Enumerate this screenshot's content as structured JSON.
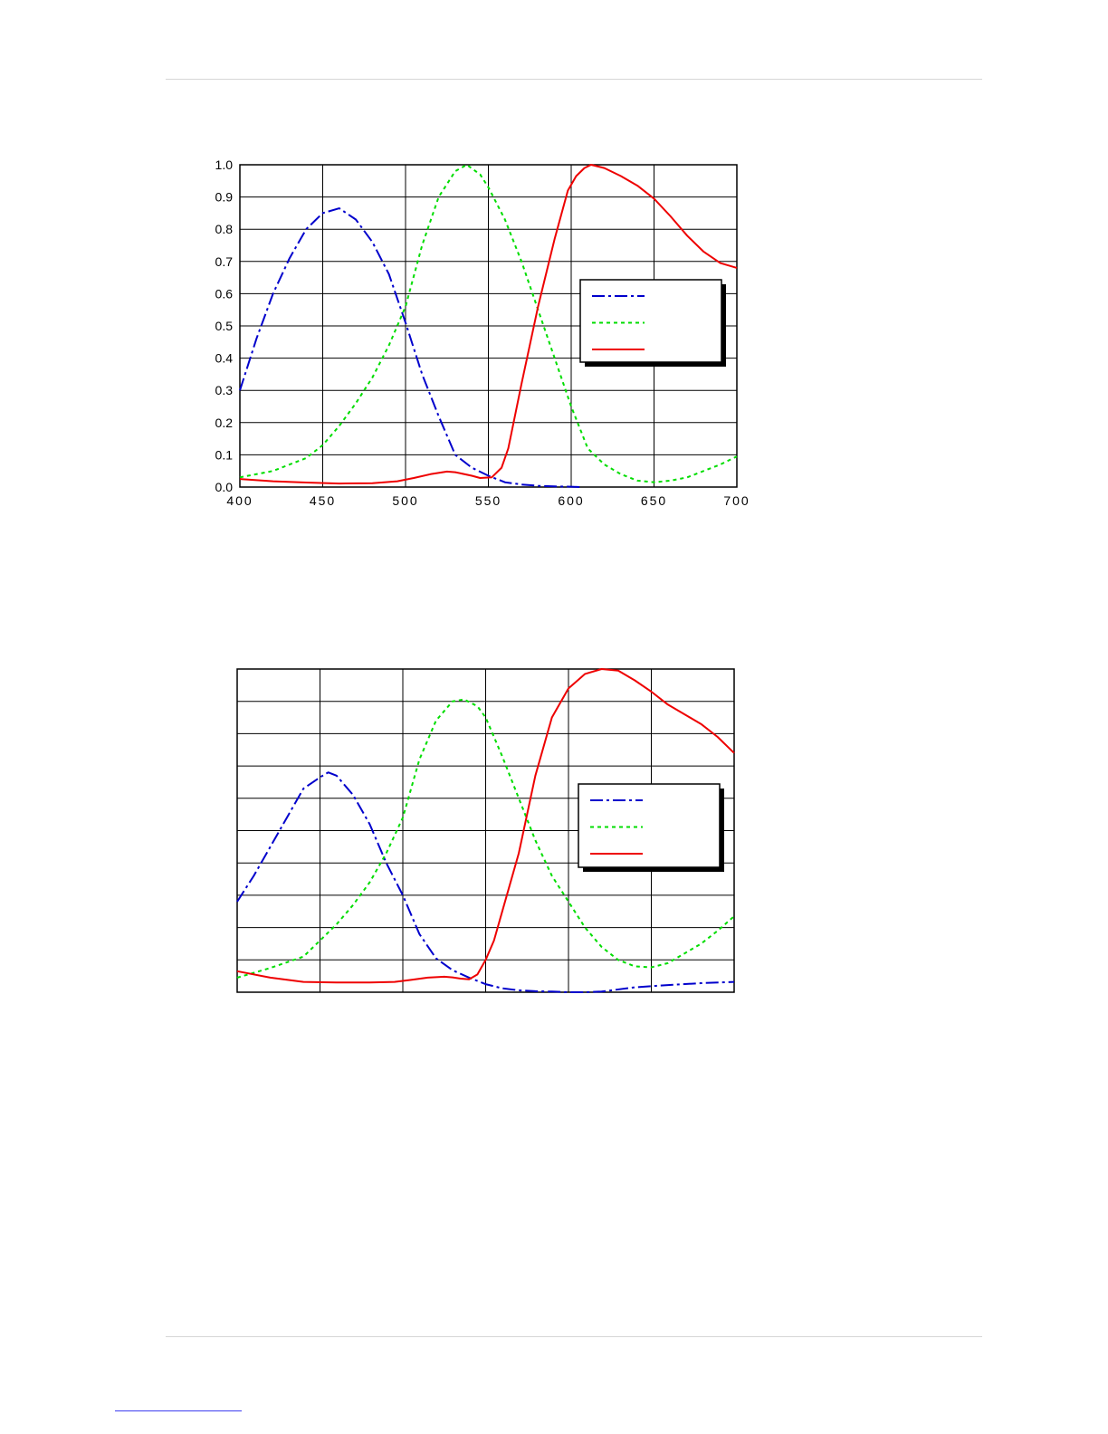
{
  "colors": {
    "blue": "#0000cc",
    "green": "#00dd00",
    "red": "#ee0000",
    "grid": "#000000",
    "rule": "#d6d6d6",
    "link": "#3d3df0"
  },
  "chart_data": [
    {
      "type": "line",
      "title": "",
      "xlabel": "",
      "ylabel": "",
      "xlim": [
        400,
        700
      ],
      "ylim": [
        0,
        1
      ],
      "x_ticks": [
        "400",
        "450",
        "500",
        "550",
        "600",
        "650",
        "700"
      ],
      "y_ticks": [
        "0.0",
        "0.1",
        "0.2",
        "0.3",
        "0.4",
        "0.5",
        "0.6",
        "0.7",
        "0.8",
        "0.9",
        "1.0"
      ],
      "grid": true,
      "legend": "right, middle",
      "series": [
        {
          "color": "#0000cc",
          "dash": "dash-dot",
          "x": [
            400,
            410,
            420,
            430,
            440,
            450,
            460,
            470,
            480,
            490,
            500,
            510,
            520,
            530,
            540,
            550,
            560,
            570,
            580,
            590,
            600,
            605
          ],
          "y": [
            0.3,
            0.46,
            0.6,
            0.71,
            0.8,
            0.85,
            0.865,
            0.83,
            0.76,
            0.66,
            0.51,
            0.35,
            0.22,
            0.1,
            0.06,
            0.035,
            0.015,
            0.008,
            0.004,
            0.002,
            0.001,
            0.0
          ]
        },
        {
          "color": "#00dd00",
          "dash": "dotted",
          "x": [
            400,
            420,
            440,
            450,
            460,
            470,
            480,
            490,
            500,
            510,
            520,
            530,
            537,
            545,
            550,
            560,
            570,
            580,
            590,
            600,
            610,
            620,
            630,
            640,
            650,
            660,
            670,
            680,
            690,
            700
          ],
          "y": [
            0.03,
            0.05,
            0.09,
            0.13,
            0.19,
            0.26,
            0.34,
            0.44,
            0.56,
            0.75,
            0.9,
            0.98,
            1.0,
            0.97,
            0.93,
            0.83,
            0.7,
            0.55,
            0.4,
            0.25,
            0.12,
            0.07,
            0.04,
            0.02,
            0.015,
            0.02,
            0.03,
            0.05,
            0.07,
            0.095
          ]
        },
        {
          "color": "#ee0000",
          "dash": "solid",
          "x": [
            400,
            420,
            440,
            460,
            480,
            495,
            505,
            515,
            525,
            530,
            540,
            545,
            552,
            558,
            562,
            570,
            580,
            590,
            598,
            603,
            608,
            612,
            620,
            630,
            640,
            650,
            660,
            670,
            680,
            690,
            700
          ],
          "y": [
            0.025,
            0.018,
            0.014,
            0.011,
            0.012,
            0.018,
            0.028,
            0.04,
            0.048,
            0.046,
            0.035,
            0.028,
            0.03,
            0.06,
            0.12,
            0.32,
            0.56,
            0.77,
            0.92,
            0.965,
            0.99,
            1.0,
            0.99,
            0.965,
            0.935,
            0.895,
            0.84,
            0.78,
            0.73,
            0.695,
            0.68
          ]
        }
      ]
    },
    {
      "type": "line",
      "title": "",
      "xlabel": "",
      "ylabel": "",
      "xlim": [
        400,
        700
      ],
      "ylim": [
        0,
        1
      ],
      "x_ticks": [],
      "y_ticks": [],
      "grid": true,
      "legend": "right, middle",
      "series": [
        {
          "color": "#0000cc",
          "dash": "dash-dot",
          "x": [
            400,
            410,
            420,
            430,
            440,
            450,
            455,
            460,
            470,
            480,
            490,
            500,
            510,
            520,
            530,
            540,
            550,
            560,
            570,
            580,
            590,
            600,
            610,
            620,
            640,
            660,
            680,
            700
          ],
          "y": [
            0.28,
            0.36,
            0.45,
            0.54,
            0.63,
            0.665,
            0.68,
            0.67,
            0.61,
            0.52,
            0.4,
            0.3,
            0.18,
            0.105,
            0.068,
            0.045,
            0.025,
            0.012,
            0.006,
            0.003,
            0.002,
            0.0,
            0.0,
            0.002,
            0.015,
            0.022,
            0.028,
            0.032
          ]
        },
        {
          "color": "#00dd00",
          "dash": "dotted",
          "x": [
            400,
            420,
            440,
            450,
            460,
            470,
            480,
            490,
            500,
            510,
            520,
            530,
            537,
            545,
            550,
            560,
            570,
            580,
            590,
            600,
            610,
            620,
            630,
            640,
            650,
            660,
            670,
            680,
            690,
            700
          ],
          "y": [
            0.045,
            0.075,
            0.11,
            0.16,
            0.21,
            0.27,
            0.34,
            0.43,
            0.54,
            0.72,
            0.84,
            0.9,
            0.906,
            0.885,
            0.85,
            0.73,
            0.6,
            0.47,
            0.36,
            0.28,
            0.2,
            0.14,
            0.1,
            0.08,
            0.077,
            0.09,
            0.12,
            0.15,
            0.19,
            0.235
          ]
        },
        {
          "color": "#ee0000",
          "dash": "solid",
          "x": [
            400,
            420,
            440,
            460,
            480,
            495,
            505,
            515,
            525,
            530,
            535,
            540,
            545,
            550,
            555,
            560,
            570,
            580,
            590,
            600,
            610,
            620,
            630,
            640,
            650,
            660,
            670,
            680,
            690,
            700
          ],
          "y": [
            0.065,
            0.045,
            0.032,
            0.03,
            0.03,
            0.032,
            0.038,
            0.045,
            0.048,
            0.046,
            0.042,
            0.04,
            0.055,
            0.1,
            0.16,
            0.25,
            0.43,
            0.67,
            0.85,
            0.94,
            0.985,
            1.0,
            0.995,
            0.965,
            0.93,
            0.89,
            0.86,
            0.83,
            0.79,
            0.74
          ]
        }
      ]
    }
  ]
}
